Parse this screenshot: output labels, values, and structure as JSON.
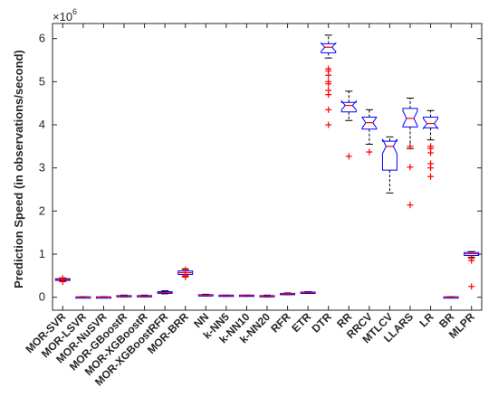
{
  "chart_data": {
    "type": "box",
    "ylabel": "Prediction Speed (in observations/second)",
    "y_multiplier_label": "×10",
    "y_multiplier_exp": "6",
    "ylim": [
      -0.3,
      6.35
    ],
    "yticks": [
      0,
      1,
      2,
      3,
      4,
      5,
      6
    ],
    "ytick_labels": [
      "0",
      "1",
      "2",
      "3",
      "4",
      "5",
      "6"
    ],
    "grid": false,
    "colors": {
      "box": "#0000ff",
      "median": "#ff0000",
      "outlier": "#ff0000",
      "whisker": "#000000",
      "axis": "#262626"
    },
    "categories": [
      {
        "name": "MOR-SVR",
        "q1": 0.39,
        "median": 0.41,
        "q3": 0.43,
        "wlo": 0.37,
        "whi": 0.45,
        "notched": false,
        "outliers": [
          0.36,
          0.44
        ]
      },
      {
        "name": "MOR-LSVR",
        "q1": 0.0,
        "median": 0.005,
        "q3": 0.01,
        "wlo": 0.0,
        "whi": 0.015,
        "notched": false,
        "outliers": []
      },
      {
        "name": "MOR-NuSVR",
        "q1": 0.0,
        "median": 0.005,
        "q3": 0.01,
        "wlo": 0.0,
        "whi": 0.015,
        "notched": false,
        "outliers": []
      },
      {
        "name": "MOR-GBoostR",
        "q1": 0.02,
        "median": 0.03,
        "q3": 0.04,
        "wlo": 0.01,
        "whi": 0.05,
        "notched": false,
        "outliers": []
      },
      {
        "name": "MOR-XGBoostR",
        "q1": 0.02,
        "median": 0.03,
        "q3": 0.04,
        "wlo": 0.01,
        "whi": 0.05,
        "notched": false,
        "outliers": []
      },
      {
        "name": "MOR-XGBoostRFR",
        "q1": 0.09,
        "median": 0.11,
        "q3": 0.13,
        "wlo": 0.08,
        "whi": 0.15,
        "notched": false,
        "outliers": []
      },
      {
        "name": "MOR-BRR",
        "q1": 0.53,
        "median": 0.57,
        "q3": 0.61,
        "wlo": 0.48,
        "whi": 0.66,
        "notched": false,
        "outliers": [
          0.47,
          0.5,
          0.64
        ]
      },
      {
        "name": "NN",
        "q1": 0.04,
        "median": 0.05,
        "q3": 0.06,
        "wlo": 0.03,
        "whi": 0.07,
        "notched": false,
        "outliers": []
      },
      {
        "name": "k-NN5",
        "q1": 0.03,
        "median": 0.04,
        "q3": 0.05,
        "wlo": 0.03,
        "whi": 0.05,
        "notched": false,
        "outliers": []
      },
      {
        "name": "k-NN10",
        "q1": 0.03,
        "median": 0.04,
        "q3": 0.05,
        "wlo": 0.03,
        "whi": 0.05,
        "notched": false,
        "outliers": []
      },
      {
        "name": "k-NN20",
        "q1": 0.02,
        "median": 0.03,
        "q3": 0.04,
        "wlo": 0.01,
        "whi": 0.05,
        "notched": false,
        "outliers": []
      },
      {
        "name": "RFR",
        "q1": 0.07,
        "median": 0.08,
        "q3": 0.09,
        "wlo": 0.06,
        "whi": 0.1,
        "notched": false,
        "outliers": []
      },
      {
        "name": "ETR",
        "q1": 0.1,
        "median": 0.11,
        "q3": 0.12,
        "wlo": 0.09,
        "whi": 0.13,
        "notched": false,
        "outliers": []
      },
      {
        "name": "DTR",
        "q1": 5.67,
        "median": 5.8,
        "q3": 5.88,
        "wlo": 5.55,
        "whi": 6.08,
        "notched": true,
        "outliers": [
          5.3,
          5.25,
          5.15,
          5.0,
          4.95,
          4.8,
          4.7,
          4.35,
          4.0
        ]
      },
      {
        "name": "RR",
        "q1": 4.3,
        "median": 4.45,
        "q3": 4.52,
        "wlo": 4.1,
        "whi": 4.78,
        "notched": true,
        "outliers": [
          3.27
        ]
      },
      {
        "name": "RRCV",
        "q1": 3.9,
        "median": 4.05,
        "q3": 4.18,
        "wlo": 3.55,
        "whi": 4.35,
        "notched": true,
        "outliers": [
          3.37
        ]
      },
      {
        "name": "MTLCV",
        "q1": 2.95,
        "median": 3.5,
        "q3": 3.62,
        "wlo": 2.42,
        "whi": 3.72,
        "notched": true,
        "outliers": []
      },
      {
        "name": "LLARS",
        "q1": 3.95,
        "median": 4.15,
        "q3": 4.38,
        "wlo": 3.45,
        "whi": 4.62,
        "notched": true,
        "outliers": [
          3.5,
          3.02,
          2.14
        ]
      },
      {
        "name": "LR",
        "q1": 3.93,
        "median": 4.03,
        "q3": 4.18,
        "wlo": 3.65,
        "whi": 4.33,
        "notched": true,
        "outliers": [
          3.5,
          3.45,
          3.35,
          3.1,
          3.0,
          2.8
        ]
      },
      {
        "name": "BR",
        "q1": 0.0,
        "median": 0.005,
        "q3": 0.01,
        "wlo": 0.0,
        "whi": 0.015,
        "notched": false,
        "outliers": []
      },
      {
        "name": "MLPR",
        "q1": 0.97,
        "median": 1.01,
        "q3": 1.04,
        "wlo": 0.93,
        "whi": 1.06,
        "notched": false,
        "outliers": [
          0.9,
          0.85,
          0.25
        ]
      }
    ]
  }
}
